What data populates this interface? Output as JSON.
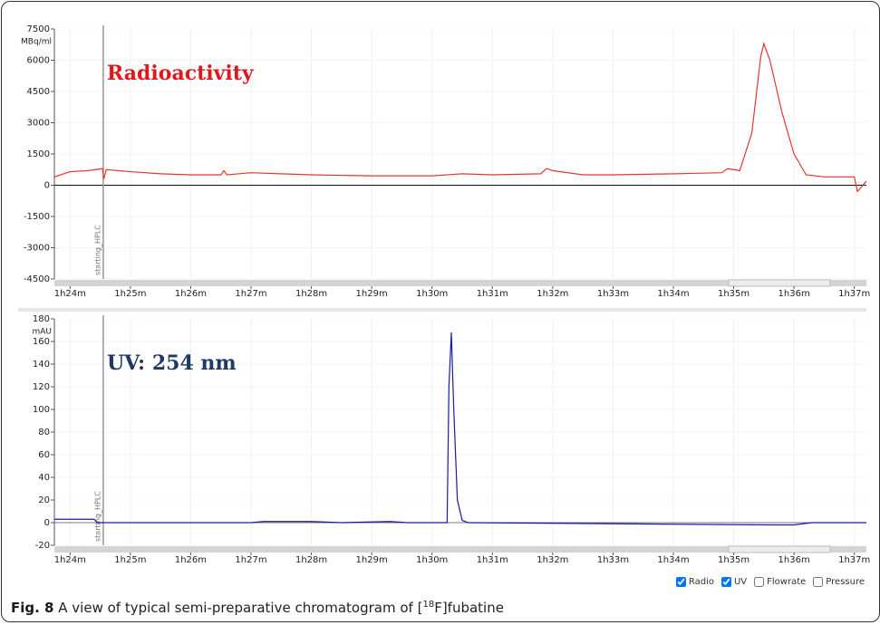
{
  "chart_data": [
    {
      "type": "line",
      "annotation": "Radioactivity",
      "annotation_color": "#e0181b",
      "y_unit": "MBq/ml",
      "xlim": [
        83.74,
        97.2
      ],
      "xticks": [
        {
          "value": 84,
          "label": "1h24m"
        },
        {
          "value": 85,
          "label": "1h25m"
        },
        {
          "value": 86,
          "label": "1h26m"
        },
        {
          "value": 87,
          "label": "1h27m"
        },
        {
          "value": 88,
          "label": "1h28m"
        },
        {
          "value": 89,
          "label": "1h29m"
        },
        {
          "value": 90,
          "label": "1h30m"
        },
        {
          "value": 91,
          "label": "1h31m"
        },
        {
          "value": 92,
          "label": "1h32m"
        },
        {
          "value": 93,
          "label": "1h33m"
        },
        {
          "value": 94,
          "label": "1h34m"
        },
        {
          "value": 95,
          "label": "1h35m"
        },
        {
          "value": 96,
          "label": "1h36m"
        },
        {
          "value": 97,
          "label": "1h37m"
        }
      ],
      "ylim": [
        -4500,
        7500
      ],
      "yticks": [
        -4500,
        -3000,
        -1500,
        0,
        1500,
        3000,
        4500,
        6000,
        7500
      ],
      "grid": true,
      "marker": {
        "x": 84.55,
        "label": "starting_HPLC"
      },
      "series": [
        {
          "name": "Radio",
          "color": "#e8342f",
          "x": [
            83.74,
            84.0,
            84.3,
            84.54,
            84.56,
            84.6,
            85.0,
            85.5,
            86.0,
            86.5,
            86.55,
            86.6,
            87.0,
            87.5,
            88.0,
            89.0,
            90.0,
            90.5,
            91.0,
            91.8,
            91.9,
            92.0,
            92.5,
            93.0,
            94.0,
            94.8,
            94.9,
            95.1,
            95.3,
            95.45,
            95.5,
            95.6,
            95.8,
            96.0,
            96.2,
            96.5,
            97.0,
            97.05,
            97.2
          ],
          "values": [
            400,
            650,
            700,
            800,
            300,
            750,
            650,
            550,
            500,
            500,
            700,
            500,
            600,
            550,
            500,
            450,
            450,
            550,
            500,
            550,
            800,
            700,
            500,
            500,
            550,
            600,
            800,
            700,
            2500,
            6200,
            6800,
            6000,
            3500,
            1500,
            500,
            400,
            400,
            -300,
            200
          ]
        }
      ]
    },
    {
      "type": "line",
      "annotation": "UV: 254 nm",
      "annotation_color": "#1f3864",
      "y_unit": "mAU",
      "xlim": [
        83.74,
        97.2
      ],
      "xticks": [
        {
          "value": 84,
          "label": "1h24m"
        },
        {
          "value": 85,
          "label": "1h25m"
        },
        {
          "value": 86,
          "label": "1h26m"
        },
        {
          "value": 87,
          "label": "1h27m"
        },
        {
          "value": 88,
          "label": "1h28m"
        },
        {
          "value": 89,
          "label": "1h29m"
        },
        {
          "value": 90,
          "label": "1h30m"
        },
        {
          "value": 91,
          "label": "1h31m"
        },
        {
          "value": 92,
          "label": "1h32m"
        },
        {
          "value": 93,
          "label": "1h33m"
        },
        {
          "value": 94,
          "label": "1h34m"
        },
        {
          "value": 95,
          "label": "1h35m"
        },
        {
          "value": 96,
          "label": "1h36m"
        },
        {
          "value": 97,
          "label": "1h37m"
        }
      ],
      "ylim": [
        -20,
        180
      ],
      "yticks": [
        -20,
        0,
        20,
        40,
        60,
        80,
        100,
        120,
        140,
        160,
        180
      ],
      "grid": true,
      "marker": {
        "x": 84.55,
        "label": "starting_HPLC"
      },
      "series": [
        {
          "name": "UV",
          "color": "#1a1aa8",
          "x": [
            83.74,
            84.4,
            84.45,
            87.0,
            87.2,
            88.0,
            88.5,
            89.3,
            89.6,
            90.25,
            90.28,
            90.32,
            90.36,
            90.42,
            90.5,
            90.6,
            95.6,
            96.0,
            96.3,
            97.2
          ],
          "values": [
            3,
            3,
            0,
            0,
            1,
            1,
            0,
            1,
            0,
            0,
            120,
            168,
            100,
            20,
            2,
            0,
            -2,
            -2,
            0,
            0
          ]
        }
      ]
    }
  ],
  "legend": [
    {
      "label": "Radio",
      "checked": true
    },
    {
      "label": "UV",
      "checked": true
    },
    {
      "label": "Flowrate",
      "checked": false
    },
    {
      "label": "Pressure",
      "checked": false
    }
  ],
  "caption": {
    "label": "Fig. 8",
    "text": "A view of typical semi-preparative chromatogram of [",
    "superscript": "18",
    "text_after": "F]fubatine"
  }
}
